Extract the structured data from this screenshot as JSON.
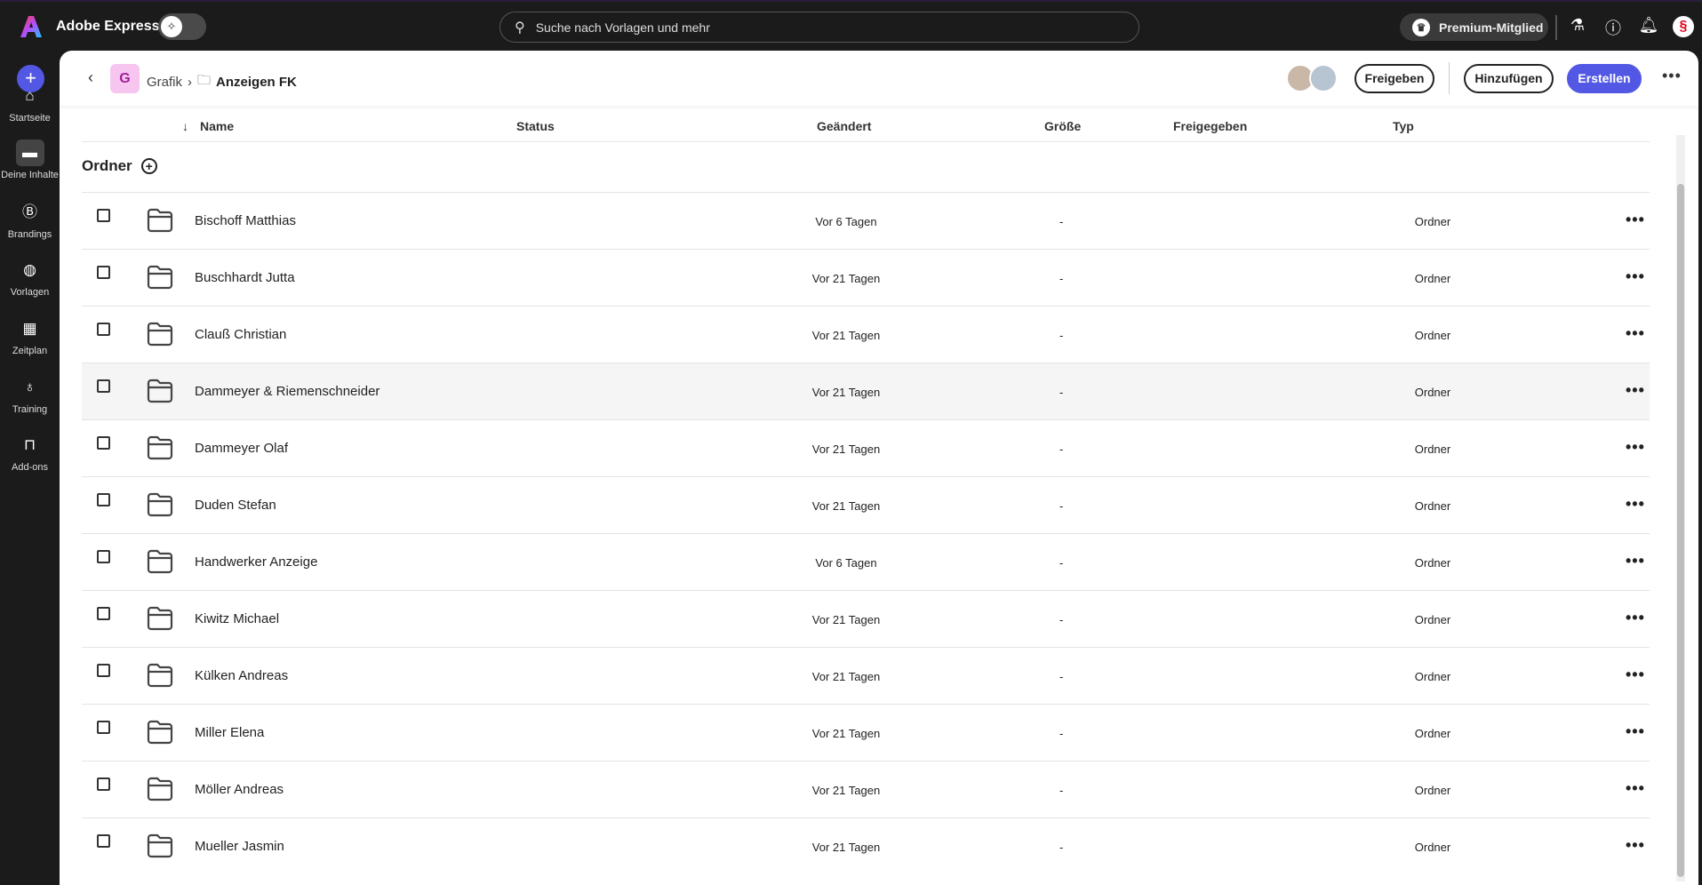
{
  "app": {
    "title": "Adobe Express",
    "search_placeholder": "Suche nach Vorlagen und mehr",
    "premium": "Premium-Mitglied"
  },
  "colors": {
    "accent": "#5258e4",
    "topbar": "#1b1b1b"
  },
  "sidebar": {
    "items": [
      {
        "label": "Startseite",
        "icon": "home-icon"
      },
      {
        "label": "Deine Inhalte",
        "icon": "folder-icon",
        "active": true
      },
      {
        "label": "Brandings",
        "icon": "brand-icon"
      },
      {
        "label": "Vorlagen",
        "icon": "templates-icon"
      },
      {
        "label": "Zeitplan",
        "icon": "calendar-icon"
      },
      {
        "label": "Training",
        "icon": "lightbulb-icon"
      },
      {
        "label": "Add-ons",
        "icon": "addons-icon"
      }
    ]
  },
  "header": {
    "badge": "G",
    "crumb_parent": "Grafik",
    "crumb_current": "Anzeigen FK",
    "share": "Freigeben",
    "add": "Hinzufügen",
    "create": "Erstellen"
  },
  "table": {
    "columns": {
      "name": "Name",
      "status": "Status",
      "changed": "Geändert",
      "size": "Größe",
      "shared": "Freigegeben",
      "type": "Typ"
    },
    "section": "Ordner",
    "rows": [
      {
        "name": "Bischoff Matthias",
        "changed": "Vor 6 Tagen",
        "size": "-",
        "type": "Ordner"
      },
      {
        "name": "Buschhardt Jutta",
        "changed": "Vor 21 Tagen",
        "size": "-",
        "type": "Ordner"
      },
      {
        "name": "Clauß Christian",
        "changed": "Vor 21 Tagen",
        "size": "-",
        "type": "Ordner"
      },
      {
        "name": "Dammeyer & Riemenschneider",
        "changed": "Vor 21 Tagen",
        "size": "-",
        "type": "Ordner"
      },
      {
        "name": "Dammeyer Olaf",
        "changed": "Vor 21 Tagen",
        "size": "-",
        "type": "Ordner"
      },
      {
        "name": "Duden Stefan",
        "changed": "Vor 21 Tagen",
        "size": "-",
        "type": "Ordner"
      },
      {
        "name": "Handwerker Anzeige",
        "changed": "Vor 6 Tagen",
        "size": "-",
        "type": "Ordner"
      },
      {
        "name": "Kiwitz Michael",
        "changed": "Vor 21 Tagen",
        "size": "-",
        "type": "Ordner"
      },
      {
        "name": "Külken Andreas",
        "changed": "Vor 21 Tagen",
        "size": "-",
        "type": "Ordner"
      },
      {
        "name": "Miller Elena",
        "changed": "Vor 21 Tagen",
        "size": "-",
        "type": "Ordner"
      },
      {
        "name": "Möller Andreas",
        "changed": "Vor 21 Tagen",
        "size": "-",
        "type": "Ordner"
      },
      {
        "name": "Mueller Jasmin",
        "changed": "Vor 21 Tagen",
        "size": "-",
        "type": "Ordner"
      }
    ]
  }
}
